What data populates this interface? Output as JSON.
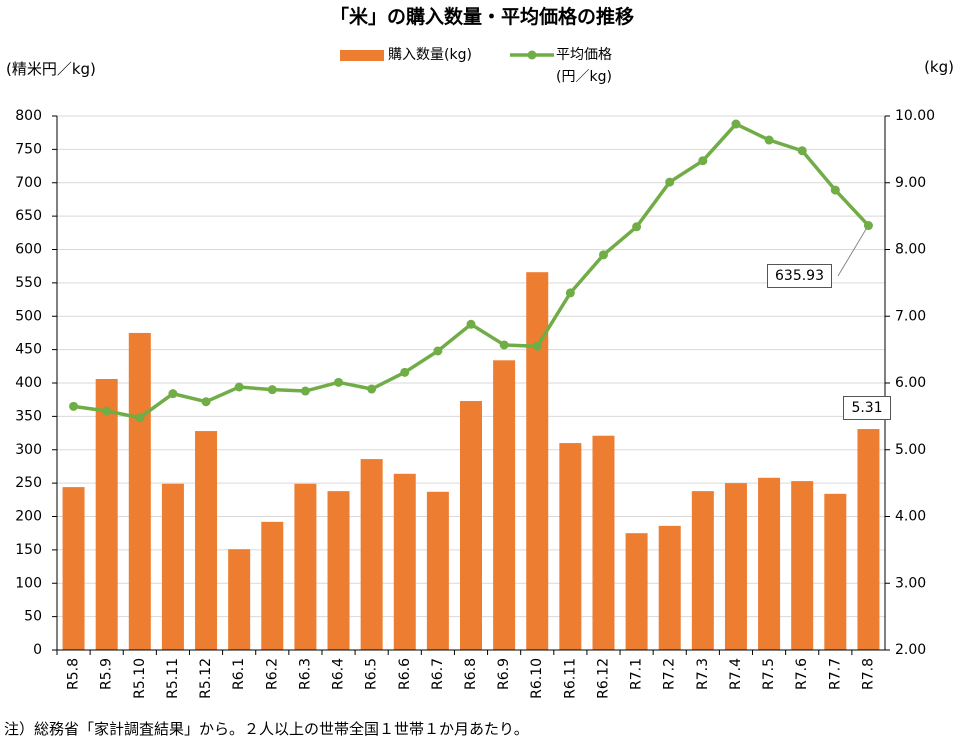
{
  "chart_data": {
    "type": "combo",
    "title": "「米」の購入数量・平均価格の推移",
    "y_label": "(精米円／kg)",
    "y2_label": "(kg)",
    "note": "注）総務省「家計調査結果」から。２人以上の世帯全国１世帯１か月あたり。",
    "categories": [
      "R5.8",
      "R5.9",
      "R5.10",
      "R5.11",
      "R5.12",
      "R6.1",
      "R6.2",
      "R6.3",
      "R6.4",
      "R6.5",
      "R6.6",
      "R6.7",
      "R6.8",
      "R6.9",
      "R6.10",
      "R6.11",
      "R6.12",
      "R7.1",
      "R7.2",
      "R7.3",
      "R7.4",
      "R7.5",
      "R7.6",
      "R7.7",
      "R7.8"
    ],
    "series": [
      {
        "name": "購入数量(kg)",
        "type": "bar",
        "axis": "y2",
        "color": "#ed7d31",
        "values": [
          4.44,
          6.06,
          6.75,
          4.49,
          5.28,
          3.51,
          3.92,
          4.49,
          4.38,
          4.86,
          4.64,
          4.37,
          5.73,
          6.34,
          7.66,
          5.1,
          5.21,
          3.75,
          3.86,
          4.38,
          4.5,
          4.58,
          4.53,
          4.34,
          5.31
        ]
      },
      {
        "name": "平均価格\n(円／kg)",
        "type": "line",
        "axis": "y",
        "color": "#70ad47",
        "values": [
          365,
          358,
          348,
          384,
          372,
          394,
          390,
          388,
          401,
          391,
          416,
          448,
          488,
          457,
          455,
          535,
          592,
          634,
          701,
          733,
          788,
          764,
          748,
          689,
          635.93
        ]
      }
    ],
    "ylim": [
      0,
      800
    ],
    "yticks": [
      0,
      50,
      100,
      150,
      200,
      250,
      300,
      350,
      400,
      450,
      500,
      550,
      600,
      650,
      700,
      750,
      800
    ],
    "y2lim": [
      2,
      10
    ],
    "y2ticks": [
      {
        "value": 2,
        "label": "2.00"
      },
      {
        "value": 3,
        "label": "3.00"
      },
      {
        "value": 4,
        "label": "4.00"
      },
      {
        "value": 5,
        "label": "5.00"
      },
      {
        "value": 6,
        "label": "6.00"
      },
      {
        "value": 7,
        "label": "7.00"
      },
      {
        "value": 8,
        "label": "8.00"
      },
      {
        "value": 9,
        "label": "9.00"
      },
      {
        "value": 10,
        "label": "10.00"
      }
    ],
    "grid": true
  }
}
